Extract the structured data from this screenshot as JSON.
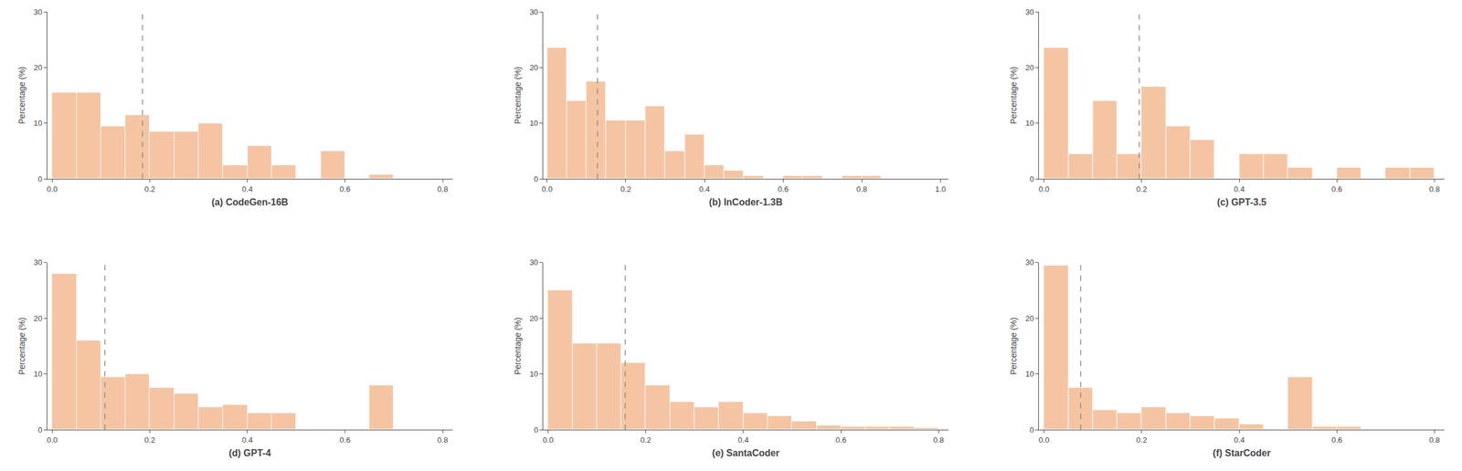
{
  "chart_data": [
    {
      "type": "histogram",
      "xlabel": "(a) CodeGen-16B",
      "ylabel": "Percentage (%)",
      "bins": [
        0.0,
        0.05,
        0.1,
        0.15,
        0.2,
        0.25,
        0.3,
        0.35,
        0.4,
        0.45,
        0.5,
        0.55,
        0.6,
        0.65,
        0.7,
        0.75,
        0.8
      ],
      "values": [
        15.5,
        15.5,
        9.5,
        11.5,
        8.5,
        8.5,
        10.0,
        2.5,
        6.0,
        2.5,
        0.0,
        5.0,
        0.0,
        0.8,
        0.0,
        0.0
      ],
      "color": "#f5c5a3",
      "vline": {
        "x": 0.185,
        "color": "#888888",
        "line_style": "dashed"
      },
      "xlim": [
        -0.01,
        0.82
      ],
      "ylim": [
        0,
        30
      ],
      "xticks": [
        {
          "value": 0.0,
          "label": "0.0"
        },
        0.2,
        0.4,
        0.6,
        0.8
      ],
      "yticks": [
        0,
        10,
        20,
        30
      ],
      "grid": false
    },
    {
      "type": "histogram",
      "xlabel": "(b) InCoder-1.3B",
      "ylabel": "Percentage (%)",
      "bins": [
        0.0,
        0.05,
        0.1,
        0.15,
        0.2,
        0.25,
        0.3,
        0.35,
        0.4,
        0.45,
        0.5,
        0.55,
        0.6,
        0.65,
        0.7,
        0.75,
        0.8,
        0.85
      ],
      "values": [
        23.5,
        14.0,
        17.5,
        10.5,
        10.5,
        13.0,
        5.0,
        8.0,
        2.5,
        1.5,
        0.5,
        0.0,
        0.6,
        0.6,
        0.0,
        0.5,
        0.6
      ],
      "color": "#f5c5a3",
      "vline": {
        "x": 0.128,
        "color": "#888888",
        "line_style": "dashed"
      },
      "xlim": [
        -0.01,
        1.02
      ],
      "ylim": [
        0,
        30
      ],
      "xticks": [
        {
          "value": 0.0,
          "label": "0.0"
        },
        0.2,
        0.4,
        0.6,
        0.8,
        {
          "value": 1.0,
          "label": "1.0"
        }
      ],
      "yticks": [
        0,
        10,
        20,
        30
      ],
      "grid": false
    },
    {
      "type": "histogram",
      "xlabel": "(c) GPT-3.5",
      "ylabel": "Percentage (%)",
      "bins": [
        0.0,
        0.05,
        0.1,
        0.15,
        0.2,
        0.25,
        0.3,
        0.35,
        0.4,
        0.45,
        0.5,
        0.55,
        0.6,
        0.65,
        0.7,
        0.75,
        0.8
      ],
      "values": [
        23.5,
        4.5,
        14.0,
        4.5,
        16.5,
        9.5,
        7.0,
        0.0,
        4.5,
        4.5,
        2.0,
        0.0,
        2.0,
        0.0,
        2.0,
        2.0
      ],
      "color": "#f5c5a3",
      "vline": {
        "x": 0.195,
        "color": "#888888",
        "line_style": "dashed"
      },
      "xlim": [
        -0.01,
        0.82
      ],
      "ylim": [
        0,
        30
      ],
      "xticks": [
        {
          "value": 0.0,
          "label": "0.0"
        },
        0.2,
        0.4,
        0.6,
        0.8
      ],
      "yticks": [
        0,
        10,
        20,
        30
      ],
      "grid": false
    },
    {
      "type": "histogram",
      "xlabel": "(d) GPT-4",
      "ylabel": "Percentage (%)",
      "bins": [
        0.0,
        0.05,
        0.1,
        0.15,
        0.2,
        0.25,
        0.3,
        0.35,
        0.4,
        0.45,
        0.5,
        0.55,
        0.6,
        0.65,
        0.7,
        0.75,
        0.8
      ],
      "values": [
        28.0,
        16.0,
        9.5,
        10.0,
        7.5,
        6.5,
        4.0,
        4.5,
        3.0,
        3.0,
        0.0,
        0.0,
        0.0,
        8.0,
        0.0,
        0.0
      ],
      "color": "#f5c5a3",
      "vline": {
        "x": 0.108,
        "color": "#888888",
        "line_style": "dashed"
      },
      "xlim": [
        -0.01,
        0.82
      ],
      "ylim": [
        0,
        30
      ],
      "xticks": [
        {
          "value": 0.0,
          "label": "0.0"
        },
        0.2,
        0.4,
        0.6,
        0.8
      ],
      "yticks": [
        0,
        10,
        20,
        30
      ],
      "grid": false
    },
    {
      "type": "histogram",
      "xlabel": "(e) SantaCoder",
      "ylabel": "Percentage (%)",
      "bins": [
        0.0,
        0.05,
        0.1,
        0.15,
        0.2,
        0.25,
        0.3,
        0.35,
        0.4,
        0.45,
        0.5,
        0.55,
        0.6,
        0.65,
        0.7,
        0.75,
        0.8
      ],
      "values": [
        25.0,
        15.5,
        15.5,
        12.0,
        8.0,
        5.0,
        4.0,
        5.0,
        3.0,
        2.5,
        1.5,
        0.8,
        0.5,
        0.5,
        0.5,
        0.3
      ],
      "color": "#f5c5a3",
      "vline": {
        "x": 0.158,
        "color": "#888888",
        "line_style": "dashed"
      },
      "xlim": [
        -0.01,
        0.82
      ],
      "ylim": [
        0,
        30
      ],
      "xticks": [
        {
          "value": 0.0,
          "label": "0.0"
        },
        0.2,
        0.4,
        0.6,
        0.8
      ],
      "yticks": [
        0,
        10,
        20,
        30
      ],
      "grid": false
    },
    {
      "type": "histogram",
      "xlabel": "(f) StarCoder",
      "ylabel": "Percentage (%)",
      "bins": [
        0.0,
        0.05,
        0.1,
        0.15,
        0.2,
        0.25,
        0.3,
        0.35,
        0.4,
        0.45,
        0.5,
        0.55,
        0.6,
        0.65,
        0.7,
        0.75,
        0.8
      ],
      "values": [
        29.5,
        7.5,
        3.5,
        3.0,
        4.0,
        3.0,
        2.5,
        2.0,
        1.0,
        0.0,
        9.5,
        0.5,
        0.5,
        0.0,
        0.0,
        0.0
      ],
      "color": "#f5c5a3",
      "vline": {
        "x": 0.075,
        "color": "#888888",
        "line_style": "dashed"
      },
      "xlim": [
        -0.01,
        0.82
      ],
      "ylim": [
        0,
        30
      ],
      "xticks": [
        {
          "value": 0.0,
          "label": "0.0"
        },
        0.2,
        0.4,
        0.6,
        0.8
      ],
      "yticks": [
        0,
        10,
        20,
        30
      ],
      "grid": false
    }
  ]
}
